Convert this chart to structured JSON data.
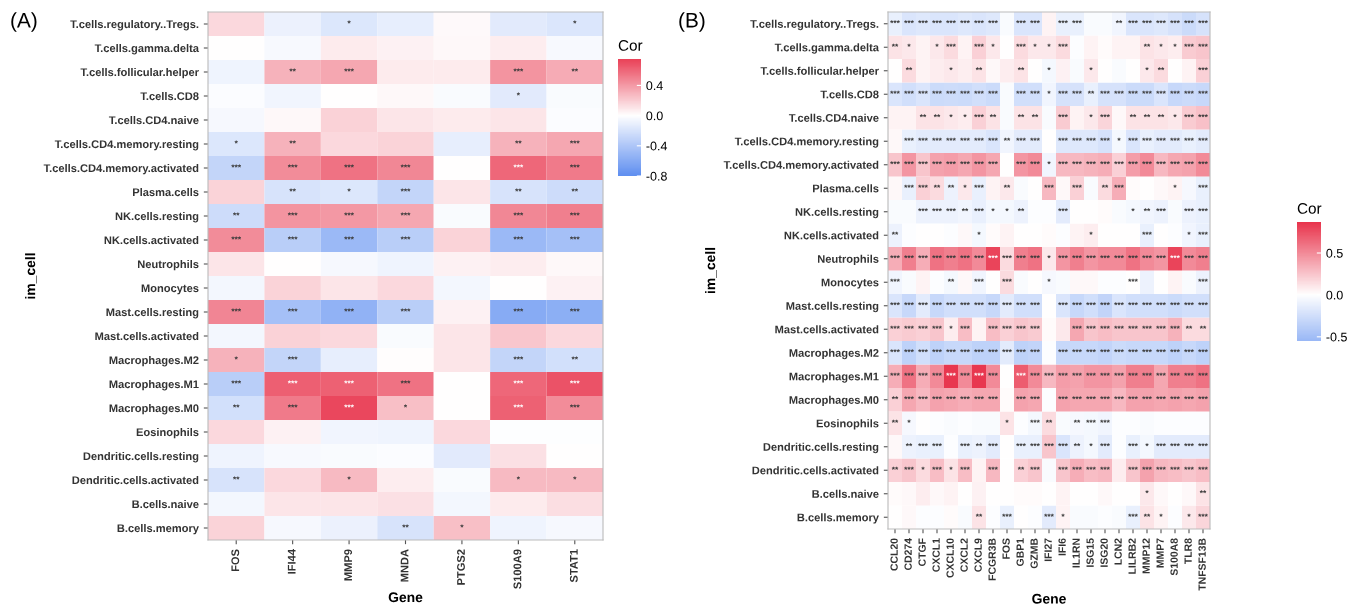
{
  "chart_data": [
    {
      "type": "heatmap",
      "title": "(A)",
      "xlabel": "Gene",
      "ylabel": "im_cell",
      "clabel": "Cor",
      "categories": [
        "FOS",
        "IFI44",
        "MMP9",
        "MNDA",
        "PTGS2",
        "S100A9",
        "STAT1"
      ],
      "y_categories": [
        "T.cells.regulatory..Tregs.",
        "T.cells.gamma.delta",
        "T.cells.follicular.helper",
        "T.cells.CD8",
        "T.cells.CD4.naive",
        "T.cells.CD4.memory.resting",
        "T.cells.CD4.memory.activated",
        "Plasma.cells",
        "NK.cells.resting",
        "NK.cells.activated",
        "Neutrophils",
        "Monocytes",
        "Mast.cells.resting",
        "Mast.cells.activated",
        "Macrophages.M2",
        "Macrophages.M1",
        "Macrophages.M0",
        "Eosinophils",
        "Dendritic.cells.resting",
        "Dendritic.cells.activated",
        "B.cells.naive",
        "B.cells.memory"
      ],
      "cells": [
        [
          0.15,
          -0.1,
          -0.17,
          -0.12,
          0.02,
          -0.15,
          -0.18
        ],
        [
          0,
          -0.04,
          0.08,
          0.05,
          0.03,
          0.07,
          -0.04
        ],
        [
          -0.08,
          0.3,
          0.35,
          0.08,
          0.08,
          0.42,
          0.33
        ],
        [
          -0.02,
          -0.07,
          0,
          0.03,
          -0.03,
          -0.15,
          -0.03
        ],
        [
          -0.05,
          0.03,
          0.18,
          0.1,
          0.08,
          0.1,
          -0.02
        ],
        [
          -0.17,
          0.3,
          0.15,
          0.17,
          -0.12,
          0.3,
          0.35
        ],
        [
          -0.3,
          0.45,
          0.55,
          0.47,
          0,
          0.6,
          0.52
        ],
        [
          0.17,
          -0.2,
          -0.17,
          -0.3,
          0.1,
          -0.2,
          -0.25
        ],
        [
          -0.25,
          0.42,
          0.4,
          0.35,
          -0.03,
          0.47,
          0.5
        ],
        [
          0.45,
          -0.35,
          -0.5,
          -0.35,
          0.17,
          -0.5,
          -0.45
        ],
        [
          0.1,
          0,
          -0.05,
          -0.08,
          0.05,
          0.07,
          0.03
        ],
        [
          -0.06,
          0.17,
          0.1,
          0.15,
          -0.06,
          0,
          0.05
        ],
        [
          0.48,
          -0.45,
          -0.55,
          -0.35,
          0.05,
          -0.6,
          -0.57
        ],
        [
          -0.06,
          0.18,
          0.15,
          -0.03,
          0.1,
          0.22,
          0.15
        ],
        [
          0.3,
          -0.3,
          -0.12,
          0.01,
          0.1,
          -0.3,
          -0.22
        ],
        [
          -0.35,
          0.63,
          0.62,
          0.55,
          0,
          0.6,
          0.68
        ],
        [
          -0.22,
          0.52,
          0.72,
          0.25,
          0,
          0.62,
          0.45
        ],
        [
          0.15,
          0.05,
          -0.07,
          -0.08,
          0.15,
          -0.01,
          -0.01
        ],
        [
          -0.08,
          -0.04,
          -0.03,
          -0.02,
          -0.15,
          0.12,
          0
        ],
        [
          -0.2,
          0.15,
          0.27,
          0.07,
          -0.03,
          0.27,
          0.27
        ],
        [
          -0.06,
          0.1,
          0.1,
          0.12,
          -0.06,
          0.08,
          0.13
        ],
        [
          0.17,
          -0.05,
          -0.1,
          -0.2,
          0.25,
          -0.08,
          -0.05
        ]
      ],
      "cell_labels": [
        [
          null,
          null,
          "*",
          null,
          null,
          null,
          "*"
        ],
        [
          null,
          null,
          null,
          null,
          null,
          null,
          null
        ],
        [
          null,
          "**",
          "***",
          null,
          null,
          "***",
          "**"
        ],
        [
          null,
          null,
          null,
          null,
          null,
          "*",
          null
        ],
        [
          null,
          null,
          null,
          null,
          null,
          null,
          null
        ],
        [
          "*",
          "**",
          null,
          null,
          null,
          "**",
          "***"
        ],
        [
          "***",
          "***",
          "***",
          "***",
          null,
          "***",
          "***"
        ],
        [
          null,
          "**",
          "*",
          "***",
          null,
          "**",
          "**"
        ],
        [
          "**",
          "***",
          "***",
          "***",
          null,
          "***",
          "***"
        ],
        [
          "***",
          "***",
          "***",
          "***",
          null,
          "***",
          "***"
        ],
        [
          null,
          null,
          null,
          null,
          null,
          null,
          null
        ],
        [
          null,
          null,
          null,
          null,
          null,
          null,
          null
        ],
        [
          "***",
          "***",
          "***",
          "***",
          null,
          "***",
          "***"
        ],
        [
          null,
          null,
          null,
          null,
          null,
          null,
          null
        ],
        [
          "*",
          "***",
          null,
          null,
          null,
          "***",
          "**"
        ],
        [
          "***",
          "***",
          "***",
          "***",
          null,
          "***",
          "***"
        ],
        [
          "**",
          "***",
          "***",
          "*",
          null,
          "***",
          "***"
        ],
        [
          null,
          null,
          null,
          null,
          null,
          null,
          null
        ],
        [
          null,
          null,
          null,
          null,
          null,
          null,
          null
        ],
        [
          "**",
          null,
          "*",
          null,
          null,
          "*",
          "*"
        ],
        [
          null,
          null,
          null,
          null,
          null,
          null,
          null
        ],
        [
          null,
          null,
          null,
          "**",
          "*",
          null,
          null
        ]
      ],
      "clim": [
        -0.8,
        0.75
      ],
      "cticks": [
        {
          "value": -0.8,
          "label": "-0.8"
        },
        {
          "value": -0.4,
          "label": "-0.4"
        },
        {
          "value": 0,
          "label": "0.0"
        },
        {
          "value": 0.4,
          "label": "0.4"
        }
      ]
    },
    {
      "type": "heatmap",
      "title": "(B)",
      "xlabel": "Gene",
      "ylabel": "im_cell",
      "clabel": "Cor",
      "categories": [
        "CCL20",
        "CD274",
        "CTGF",
        "CXCL1",
        "CXCL10",
        "CXCL2",
        "CXCL9",
        "FCGR3B",
        "FOS",
        "GBP1",
        "GZMB",
        "IFI27",
        "IFI6",
        "IL1RN",
        "ISG15",
        "ISG20",
        "LCN2",
        "LILRB2",
        "MMP12",
        "MMP7",
        "S100A8",
        "TLR8",
        "TNFSF13B"
      ],
      "y_categories": [
        "T.cells.regulatory..Tregs.",
        "T.cells.gamma.delta",
        "T.cells.follicular.helper",
        "T.cells.CD8",
        "T.cells.CD4.naive",
        "T.cells.CD4.memory.resting",
        "T.cells.CD4.memory.activated",
        "Plasma.cells",
        "NK.cells.resting",
        "NK.cells.activated",
        "Neutrophils",
        "Monocytes",
        "Mast.cells.resting",
        "Mast.cells.activated",
        "Macrophages.M2",
        "Macrophages.M1",
        "Macrophages.M0",
        "Eosinophils",
        "Dendritic.cells.resting",
        "Dendritic.cells.activated",
        "B.cells.naive",
        "B.cells.memory"
      ],
      "cells": [
        [
          -0.12,
          -0.2,
          -0.18,
          -0.2,
          -0.2,
          -0.18,
          -0.2,
          -0.18,
          -0.03,
          -0.2,
          -0.2,
          0.05,
          -0.12,
          -0.12,
          -0.03,
          -0.03,
          -0.08,
          -0.2,
          -0.2,
          -0.18,
          -0.22,
          -0.28,
          -0.22
        ],
        [
          0.12,
          0.1,
          0.05,
          0.1,
          0.15,
          0.05,
          0.2,
          0.1,
          0,
          0.15,
          0.1,
          0.1,
          0.15,
          -0.02,
          0.05,
          0.02,
          0.05,
          0.05,
          0.12,
          0.1,
          0.08,
          0.22,
          0.25
        ],
        [
          0,
          0.15,
          0.05,
          0.08,
          0.1,
          0.07,
          0.12,
          0.03,
          0.08,
          0.12,
          0,
          -0.06,
          0.06,
          -0.03,
          0.1,
          0,
          -0.03,
          0,
          0.1,
          0.15,
          0,
          0.05,
          0.2
        ],
        [
          -0.2,
          -0.25,
          -0.2,
          -0.28,
          -0.27,
          -0.28,
          -0.25,
          -0.28,
          -0.03,
          -0.25,
          -0.25,
          -0.08,
          -0.22,
          -0.22,
          -0.12,
          -0.22,
          -0.22,
          -0.28,
          -0.28,
          -0.2,
          -0.3,
          -0.28,
          -0.3
        ],
        [
          0.05,
          0.05,
          0.12,
          0.12,
          0.1,
          0.08,
          0.2,
          0.12,
          -0.03,
          0.12,
          0.12,
          -0.03,
          0.22,
          0.05,
          0.1,
          0.18,
          0.03,
          0.12,
          0.12,
          0.12,
          0.1,
          0.22,
          0.27
        ],
        [
          0.03,
          -0.12,
          -0.15,
          -0.15,
          -0.15,
          -0.15,
          -0.15,
          -0.2,
          -0.08,
          -0.15,
          -0.15,
          0,
          -0.18,
          -0.18,
          -0.18,
          -0.22,
          -0.06,
          -0.2,
          -0.12,
          -0.15,
          -0.15,
          -0.12,
          -0.15
        ],
        [
          0.25,
          0.45,
          0.25,
          0.4,
          0.42,
          0.38,
          0.45,
          0.38,
          0,
          0.45,
          0.5,
          -0.08,
          0.3,
          0.3,
          0.32,
          0.35,
          0.2,
          0.42,
          0.5,
          0.3,
          0.38,
          0.4,
          0.5
        ],
        [
          0.03,
          -0.12,
          0.2,
          0.15,
          -0.1,
          0.1,
          -0.12,
          0.05,
          0.1,
          -0.03,
          0,
          0.3,
          0.03,
          0.2,
          -0.03,
          0.15,
          0.35,
          0.02,
          0,
          0.03,
          0.05,
          -0.05,
          -0.12
        ],
        [
          -0.03,
          -0.03,
          -0.1,
          -0.1,
          -0.1,
          -0.08,
          -0.12,
          -0.06,
          -0.06,
          -0.1,
          -0.02,
          -0.02,
          -0.15,
          0,
          0,
          0.02,
          -0.03,
          -0.06,
          -0.08,
          -0.1,
          -0.03,
          -0.1,
          -0.12
        ],
        [
          -0.1,
          -0.02,
          0,
          0,
          -0.02,
          0.03,
          -0.06,
          0.02,
          0.05,
          0,
          0,
          0.02,
          -0.02,
          0.05,
          0.08,
          0,
          0,
          0,
          -0.12,
          0,
          -0.02,
          -0.08,
          -0.12
        ],
        [
          0.35,
          0.55,
          0.35,
          0.6,
          0.55,
          0.6,
          0.5,
          0.8,
          0.15,
          0.55,
          0.6,
          0.1,
          0.45,
          0.55,
          0.45,
          0.5,
          0.5,
          0.6,
          0.5,
          0.45,
          0.8,
          0.5,
          0.55
        ],
        [
          -0.08,
          -0.03,
          0.05,
          -0.02,
          -0.06,
          0.03,
          -0.08,
          0,
          0.15,
          -0.03,
          0,
          -0.05,
          -0.03,
          0.03,
          0.03,
          -0.02,
          -0.02,
          0,
          -0.1,
          0,
          0.05,
          -0.03,
          -0.1
        ],
        [
          -0.2,
          -0.3,
          -0.15,
          -0.3,
          -0.25,
          -0.25,
          -0.25,
          -0.3,
          -0.15,
          -0.25,
          -0.25,
          0,
          -0.2,
          -0.3,
          -0.25,
          -0.33,
          -0.2,
          -0.25,
          -0.25,
          -0.25,
          -0.28,
          -0.25,
          -0.25
        ],
        [
          0.2,
          0.22,
          0.2,
          0.25,
          0.08,
          0.28,
          0.05,
          0.28,
          0.2,
          0.25,
          0.22,
          0.02,
          0.1,
          0.38,
          0.25,
          0.28,
          0.25,
          0.25,
          0.25,
          0.25,
          0.33,
          0.15,
          0.15
        ],
        [
          -0.2,
          -0.35,
          -0.25,
          -0.35,
          -0.3,
          -0.3,
          -0.35,
          -0.35,
          -0.15,
          -0.35,
          -0.33,
          -0.02,
          -0.3,
          -0.3,
          -0.3,
          -0.33,
          -0.28,
          -0.3,
          -0.3,
          -0.3,
          -0.35,
          -0.3,
          -0.35
        ],
        [
          0.35,
          0.6,
          0.35,
          0.5,
          0.85,
          0.5,
          0.85,
          0.5,
          0,
          0.7,
          0.5,
          0.3,
          0.42,
          0.4,
          0.45,
          0.45,
          0.4,
          0.55,
          0.55,
          0.38,
          0.55,
          0.55,
          0.6
        ],
        [
          0.2,
          0.38,
          0.3,
          0.4,
          0.38,
          0.35,
          0.38,
          0.38,
          0.02,
          0.4,
          0.38,
          -0.02,
          0.4,
          0.38,
          0.38,
          0.38,
          0.3,
          0.4,
          0.4,
          0.38,
          0.4,
          0.38,
          0.4
        ],
        [
          0.12,
          -0.05,
          0,
          -0.02,
          -0.03,
          -0.02,
          -0.03,
          -0.03,
          0.12,
          -0.02,
          -0.06,
          0.15,
          -0.03,
          -0.05,
          -0.06,
          -0.08,
          -0.02,
          -0.02,
          -0.03,
          -0.02,
          -0.02,
          -0.02,
          -0.02
        ],
        [
          0.03,
          -0.1,
          -0.12,
          -0.12,
          -0.02,
          -0.12,
          -0.1,
          -0.15,
          0,
          -0.12,
          -0.12,
          0.25,
          -0.2,
          -0.1,
          -0.06,
          -0.15,
          -0.02,
          -0.12,
          -0.06,
          -0.15,
          -0.15,
          -0.15,
          -0.15
        ],
        [
          0.2,
          0.25,
          0.15,
          0.28,
          0.12,
          0.28,
          0.05,
          0.3,
          0,
          0.2,
          0.25,
          -0.03,
          0.25,
          0.35,
          0.28,
          0.3,
          0.08,
          0.25,
          0.4,
          0.3,
          0.28,
          0.25,
          0.28
        ],
        [
          0.02,
          0.03,
          0.08,
          0.03,
          0.05,
          0,
          0.06,
          0,
          0,
          0.02,
          0.02,
          0,
          0.05,
          0,
          0,
          0.03,
          0,
          0,
          0.1,
          0.03,
          0,
          0.03,
          0.12
        ],
        [
          0,
          0.03,
          -0.02,
          -0.02,
          0.02,
          -0.03,
          0.12,
          -0.02,
          -0.12,
          0,
          -0.02,
          -0.15,
          0.05,
          -0.03,
          -0.03,
          -0.02,
          -0.03,
          -0.12,
          0.12,
          0.05,
          -0.02,
          0.1,
          0.18
        ]
      ],
      "cell_labels": [
        [
          "***",
          "***",
          "***",
          "***",
          "***",
          "***",
          "***",
          "***",
          null,
          "***",
          "***",
          null,
          "***",
          "***",
          null,
          null,
          "**",
          "***",
          "***",
          "***",
          "***",
          "***",
          "***"
        ],
        [
          "**",
          "*",
          null,
          "*",
          "***",
          null,
          "***",
          "*",
          null,
          "***",
          "*",
          "*",
          "***",
          null,
          null,
          null,
          null,
          null,
          "**",
          "*",
          "*",
          "***",
          "***"
        ],
        [
          null,
          "**",
          null,
          null,
          "*",
          null,
          "**",
          null,
          null,
          "**",
          null,
          "*",
          null,
          null,
          "*",
          null,
          null,
          null,
          "*",
          "**",
          null,
          null,
          "***"
        ],
        [
          "***",
          "***",
          "***",
          "***",
          "***",
          "***",
          "***",
          "***",
          null,
          "***",
          "***",
          "*",
          "***",
          "***",
          "**",
          "***",
          "***",
          "***",
          "***",
          "***",
          "***",
          "***",
          "***"
        ],
        [
          null,
          null,
          "**",
          "**",
          "*",
          "*",
          "***",
          "**",
          null,
          "**",
          "**",
          null,
          "***",
          null,
          "*",
          "***",
          null,
          "**",
          "**",
          "**",
          "*",
          "***",
          "***"
        ],
        [
          null,
          "***",
          "***",
          "***",
          "***",
          "***",
          "***",
          "***",
          "**",
          "***",
          "***",
          null,
          "***",
          "***",
          "***",
          "***",
          "*",
          "***",
          "***",
          "***",
          "***",
          "***",
          "***"
        ],
        [
          "***",
          "***",
          "***",
          "***",
          "***",
          "***",
          "***",
          "***",
          null,
          "***",
          "***",
          "*",
          "***",
          "***",
          "***",
          "***",
          "***",
          "***",
          "***",
          "***",
          "***",
          "***",
          "***"
        ],
        [
          null,
          "***",
          "***",
          "**",
          "**",
          "*",
          "***",
          null,
          "**",
          null,
          null,
          "***",
          null,
          "***",
          null,
          "**",
          "***",
          null,
          null,
          null,
          "*",
          null,
          "***"
        ],
        [
          null,
          null,
          "***",
          "***",
          "***",
          "**",
          "***",
          "*",
          "*",
          "**",
          null,
          null,
          "***",
          null,
          null,
          null,
          null,
          "*",
          "**",
          "***",
          null,
          "***",
          "***"
        ],
        [
          "**",
          null,
          null,
          null,
          null,
          null,
          "*",
          null,
          null,
          null,
          null,
          null,
          null,
          null,
          "*",
          null,
          null,
          null,
          "***",
          null,
          null,
          "*",
          "***"
        ],
        [
          "***",
          "***",
          "***",
          "***",
          "***",
          "***",
          "***",
          "***",
          "***",
          "***",
          "***",
          "*",
          "***",
          "***",
          "***",
          "***",
          "***",
          "***",
          "***",
          "***",
          "***",
          "***",
          "***"
        ],
        [
          "***",
          null,
          null,
          null,
          "**",
          null,
          "***",
          null,
          "***",
          null,
          null,
          "*",
          null,
          null,
          null,
          null,
          null,
          "***",
          null,
          null,
          null,
          null,
          "***"
        ],
        [
          "***",
          "***",
          "***",
          "***",
          "***",
          "***",
          "***",
          "***",
          "***",
          "***",
          "***",
          null,
          "***",
          "***",
          "***",
          "***",
          "***",
          "***",
          "***",
          "***",
          "***",
          "***",
          "***"
        ],
        [
          "***",
          "***",
          "***",
          "***",
          "*",
          "***",
          null,
          "***",
          "***",
          "***",
          "***",
          null,
          null,
          "***",
          "***",
          "***",
          "***",
          "***",
          "***",
          "***",
          "***",
          "**",
          "**"
        ],
        [
          "***",
          "***",
          "***",
          "***",
          "***",
          "***",
          "***",
          "***",
          "***",
          "***",
          "***",
          null,
          "***",
          "***",
          "***",
          "***",
          "***",
          "***",
          "***",
          "***",
          "***",
          "***",
          "***"
        ],
        [
          "***",
          "***",
          "***",
          "***",
          "***",
          "***",
          "***",
          "***",
          null,
          "***",
          "***",
          "***",
          "***",
          "***",
          "***",
          "***",
          "***",
          "***",
          "***",
          "***",
          "***",
          "***",
          "***"
        ],
        [
          "**",
          "***",
          "***",
          "***",
          "***",
          "***",
          "***",
          "***",
          null,
          "***",
          "***",
          null,
          "***",
          "***",
          "***",
          "***",
          "***",
          "***",
          "***",
          "***",
          "***",
          "***",
          "***"
        ],
        [
          "**",
          "*",
          null,
          null,
          null,
          null,
          null,
          null,
          "*",
          null,
          "***",
          "**",
          null,
          "**",
          "***",
          "***",
          null,
          null,
          null,
          null,
          null,
          null,
          null
        ],
        [
          null,
          "**",
          "***",
          "***",
          null,
          "***",
          "**",
          "***",
          null,
          "***",
          "***",
          "***",
          "***",
          "**",
          "*",
          "***",
          null,
          "***",
          "*",
          "***",
          "***",
          "***",
          "***"
        ],
        [
          "**",
          "***",
          "*",
          "***",
          "*",
          "***",
          null,
          "***",
          null,
          "**",
          "***",
          null,
          "***",
          "***",
          "***",
          "***",
          null,
          "***",
          "***",
          "***",
          "***",
          "***",
          "***"
        ],
        [
          null,
          null,
          null,
          null,
          null,
          null,
          null,
          null,
          null,
          null,
          null,
          null,
          null,
          null,
          null,
          null,
          null,
          null,
          "*",
          null,
          null,
          null,
          "**"
        ],
        [
          null,
          null,
          null,
          null,
          null,
          null,
          "**",
          null,
          "***",
          null,
          null,
          "***",
          "*",
          null,
          null,
          null,
          null,
          "***",
          "**",
          "*",
          null,
          "*",
          "***"
        ]
      ],
      "clim": [
        -0.55,
        0.87
      ],
      "cticks": [
        {
          "value": -0.5,
          "label": "-0.5"
        },
        {
          "value": 0,
          "label": "0.0"
        },
        {
          "value": 0.5,
          "label": "0.5"
        }
      ]
    }
  ]
}
